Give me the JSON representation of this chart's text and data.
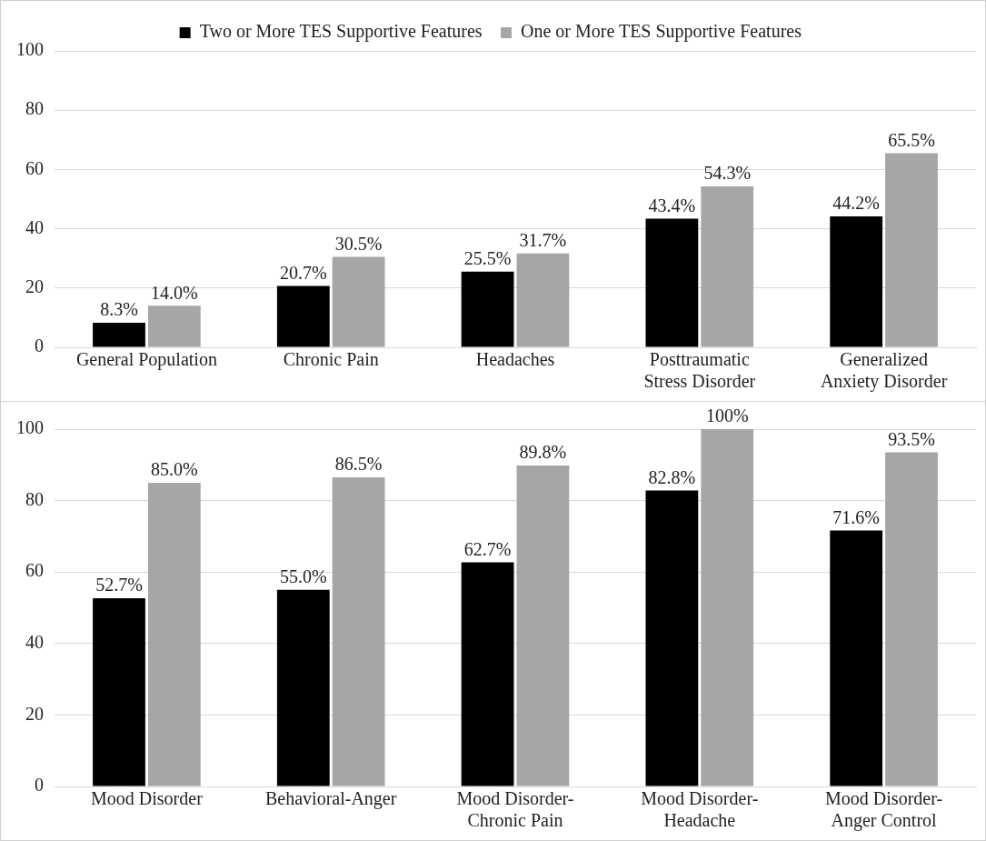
{
  "chart_data": [
    {
      "type": "bar",
      "categories": [
        "General Population",
        "Chronic Pain",
        "Headaches",
        "Posttraumatic Stress Disorder",
        "Generalized Anxiety Disorder"
      ],
      "series": [
        {
          "name": "Two or More TES Supportive Features",
          "color": "#000000",
          "values": [
            8.3,
            20.7,
            25.5,
            43.4,
            44.2
          ],
          "value_labels": [
            "8.3%",
            "20.7%",
            "25.5%",
            "43.4%",
            "44.2%"
          ]
        },
        {
          "name": "One or More TES Supportive Features",
          "color": "#a6a6a6",
          "values": [
            14.0,
            30.5,
            31.7,
            54.3,
            65.5
          ],
          "value_labels": [
            "14.0%",
            "30.5%",
            "31.7%",
            "54.3%",
            "65.5%"
          ]
        }
      ],
      "ylim": [
        0,
        100
      ],
      "yticks": [
        0,
        20,
        40,
        60,
        80,
        100
      ],
      "grid": "y",
      "legend": "top"
    },
    {
      "type": "bar",
      "categories": [
        "Mood Disorder",
        "Behavioral-Anger",
        "Mood Disorder-Chronic Pain",
        "Mood Disorder-Headache",
        "Mood Disorder-Anger Control"
      ],
      "series": [
        {
          "color": "#000000",
          "values": [
            52.7,
            55.0,
            62.7,
            82.8,
            71.6
          ],
          "value_labels": [
            "52.7%",
            "55.0%",
            "62.7%",
            "82.8%",
            "71.6%"
          ]
        },
        {
          "color": "#a6a6a6",
          "values": [
            85.0,
            86.5,
            89.8,
            100,
            93.5
          ],
          "value_labels": [
            "85.0%",
            "86.5%",
            "89.8%",
            "100%",
            "93.5%"
          ]
        }
      ],
      "ylim": [
        0,
        100
      ],
      "yticks": [
        0,
        20,
        40,
        60,
        80,
        100
      ],
      "grid": "y",
      "legend": false
    }
  ]
}
